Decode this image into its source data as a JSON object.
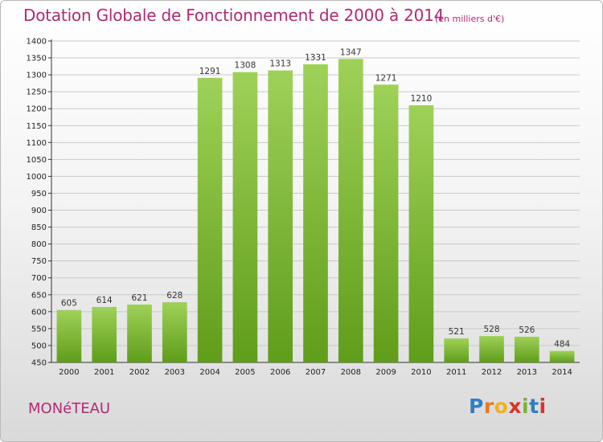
{
  "title": "Dotation Globale de Fonctionnement de 2000 à 2014",
  "unit_note": "(en milliers d'€)",
  "commune": "MONéTEAU",
  "logo": {
    "letters": [
      "P",
      "r",
      "o",
      "x",
      "i",
      "t",
      "i"
    ],
    "colors": [
      "#2f7fc4",
      "#e8791d",
      "#f2b21a",
      "#d9342b",
      "#7ab52f",
      "#2f7fc4",
      "#d9342b"
    ]
  },
  "colors": {
    "title": "#b02a72",
    "bar_light": "#9fd158",
    "bar_dark": "#5f9d1a",
    "grid": "#c9c9c9"
  },
  "chart_data": {
    "type": "bar",
    "title": "Dotation Globale de Fonctionnement de 2000 à 2014",
    "subtitle": "(en milliers d'€)",
    "xlabel": "",
    "ylabel": "",
    "categories": [
      "2000",
      "2001",
      "2002",
      "2003",
      "2004",
      "2005",
      "2006",
      "2007",
      "2008",
      "2009",
      "2010",
      "2011",
      "2012",
      "2013",
      "2014"
    ],
    "values": [
      605,
      614,
      621,
      628,
      1291,
      1308,
      1313,
      1331,
      1347,
      1271,
      1210,
      521,
      528,
      526,
      484
    ],
    "ylim": [
      450,
      1400
    ],
    "ytick_step": 50,
    "grid": true
  }
}
